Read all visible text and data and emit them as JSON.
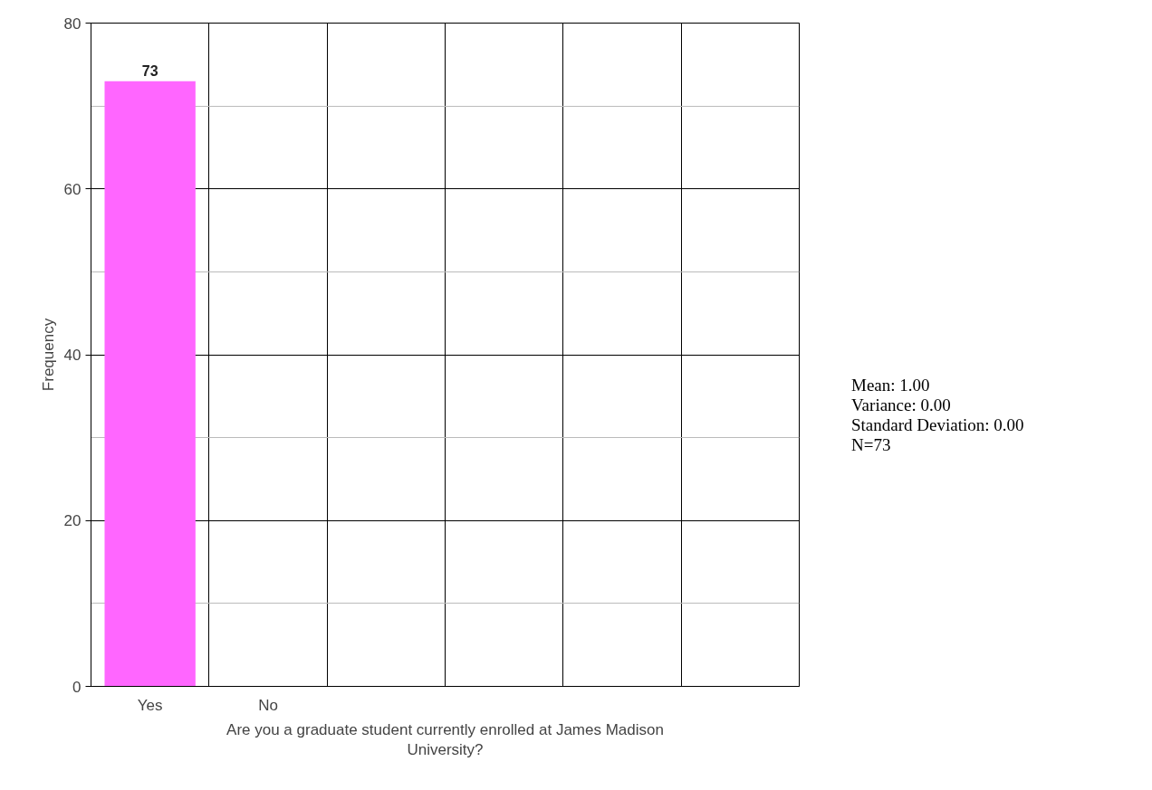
{
  "chart_data": {
    "type": "bar",
    "xlabel": "Are you a graduate student currently enrolled at James Madison University?",
    "ylabel": "Frequency",
    "categories": [
      "Yes",
      "No",
      null,
      null,
      null,
      null
    ],
    "values": [
      73,
      0,
      null,
      null,
      null,
      null
    ],
    "value_labels": [
      "73",
      null,
      null,
      null,
      null,
      null
    ],
    "color": "#ff66ff",
    "ylim": [
      0,
      80
    ],
    "yticks": [
      0,
      20,
      40,
      60,
      80
    ],
    "grid": true,
    "annotations": [
      "Mean: 1.00",
      "Variance: 0.00",
      "Standard Deviation: 0.00",
      "N=73"
    ]
  }
}
